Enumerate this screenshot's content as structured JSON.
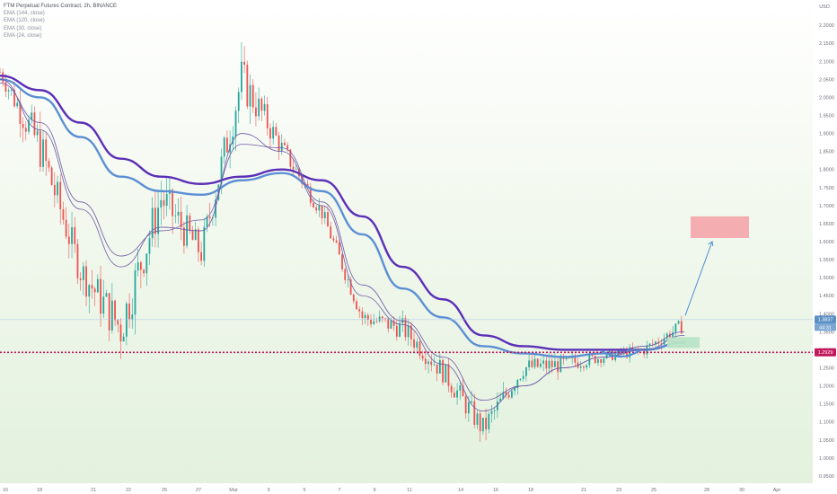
{
  "legend": {
    "title": "FTM Perpetual Futures Contract, 2h, BINANCE",
    "lines": [
      "EMA (144, close)",
      "EMA (120, close)",
      "EMA (30, close)",
      "EMA (24, close)"
    ]
  },
  "price_axis": {
    "currency": "USD",
    "ticks": [
      "2.2500",
      "2.2000",
      "2.1500",
      "2.1000",
      "2.0500",
      "2.0000",
      "1.9500",
      "1.9000",
      "1.8500",
      "1.8000",
      "1.7500",
      "1.7000",
      "1.6500",
      "1.6000",
      "1.5500",
      "1.5000",
      "1.4500",
      "1.4000",
      "1.3500",
      "1.3000",
      "1.2500",
      "1.2000",
      "1.1500",
      "1.1000",
      "1.0500",
      "1.0000",
      "0.9500"
    ],
    "current_price_label": "1.3837",
    "countdown_label": "44:31",
    "level_label": "1.2929"
  },
  "time_axis": {
    "ticks": [
      "16",
      "18",
      "21",
      "22",
      "25",
      "27",
      "Mar",
      "3",
      "5",
      "7",
      "9",
      "11",
      "14",
      "16",
      "18",
      "21",
      "23",
      "25",
      "28",
      "30",
      "Apr"
    ]
  },
  "colors": {
    "bull": "#26a69a",
    "bear": "#ef5350",
    "ema_slow": "#5b2fb7",
    "ema_mid": "#5b8fd4",
    "ema_fast": "#6e5aa6",
    "level": "#c2185b",
    "target_box": "#f4a4a8",
    "entry_box": "#b9e3c6",
    "arrow": "#4f8ed9"
  },
  "chart_data": {
    "type": "candlestick",
    "x": [
      "16",
      "18",
      "21",
      "22",
      "25",
      "27",
      "Mar",
      "3",
      "5",
      "7",
      "9",
      "11",
      "14",
      "16",
      "18",
      "21",
      "23",
      "25"
    ],
    "close": [
      2.07,
      1.86,
      1.52,
      1.36,
      1.72,
      1.57,
      2.05,
      1.86,
      1.68,
      1.39,
      1.36,
      1.24,
      1.08,
      1.25,
      1.26,
      1.28,
      1.3,
      1.37
    ],
    "high": [
      2.11,
      2.14,
      1.7,
      1.68,
      1.8,
      1.78,
      2.08,
      1.96,
      1.75,
      1.45,
      1.44,
      1.34,
      1.23,
      1.3,
      1.35,
      1.32,
      1.36,
      1.43
    ],
    "low": [
      1.98,
      1.78,
      1.43,
      1.29,
      1.45,
      1.53,
      1.72,
      1.8,
      1.62,
      1.31,
      1.27,
      1.16,
      1.03,
      1.14,
      1.21,
      1.24,
      1.26,
      1.31
    ],
    "series": [
      {
        "name": "EMA (144, close)",
        "values": [
          2.06,
          2.02,
          1.93,
          1.83,
          1.78,
          1.76,
          1.78,
          1.8,
          1.77,
          1.67,
          1.53,
          1.44,
          1.34,
          1.31,
          1.3,
          1.3,
          1.3,
          1.32
        ]
      },
      {
        "name": "EMA (120, close)",
        "values": [
          2.05,
          2.0,
          1.89,
          1.78,
          1.74,
          1.73,
          1.77,
          1.79,
          1.74,
          1.62,
          1.47,
          1.39,
          1.31,
          1.29,
          1.28,
          1.29,
          1.3,
          1.32
        ]
      },
      {
        "name": "EMA (30, close)",
        "values": [
          2.04,
          1.93,
          1.71,
          1.56,
          1.63,
          1.66,
          1.87,
          1.86,
          1.71,
          1.48,
          1.38,
          1.28,
          1.16,
          1.2,
          1.25,
          1.28,
          1.3,
          1.34
        ]
      },
      {
        "name": "EMA (24, close)",
        "values": [
          2.05,
          1.91,
          1.69,
          1.53,
          1.64,
          1.63,
          1.9,
          1.85,
          1.7,
          1.45,
          1.37,
          1.26,
          1.13,
          1.2,
          1.25,
          1.28,
          1.31,
          1.35
        ]
      }
    ],
    "horizontal_level": 1.2929,
    "target_zone": [
      1.61,
      1.67
    ],
    "entry_zone": [
      1.305,
      1.335
    ],
    "ylim": [
      0.93,
      2.27
    ]
  }
}
